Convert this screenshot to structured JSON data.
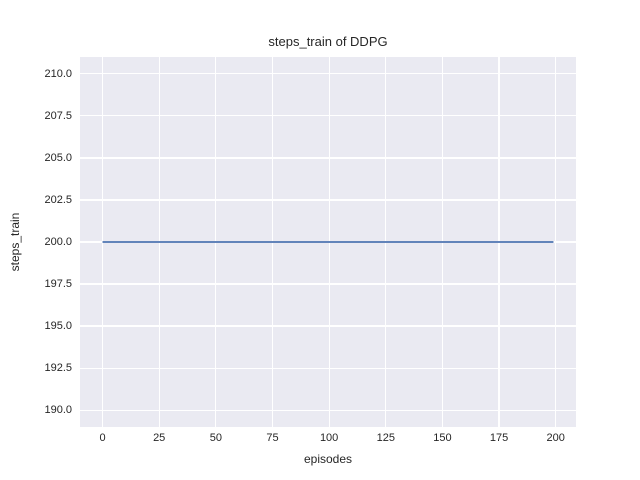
{
  "chart_data": {
    "type": "line",
    "title": "steps_train of DDPG",
    "xlabel": "episodes",
    "ylabel": "steps_train",
    "x_ticks": [
      0,
      25,
      50,
      75,
      100,
      125,
      150,
      175,
      200
    ],
    "x_tick_labels": [
      "0",
      "25",
      "50",
      "75",
      "100",
      "125",
      "150",
      "175",
      "200"
    ],
    "y_ticks": [
      190.0,
      192.5,
      195.0,
      197.5,
      200.0,
      202.5,
      205.0,
      207.5,
      210.0
    ],
    "y_tick_labels": [
      "190.0",
      "192.5",
      "195.0",
      "197.5",
      "200.0",
      "202.5",
      "205.0",
      "207.5",
      "210.0"
    ],
    "xlim": [
      -9.95,
      208.95
    ],
    "ylim": [
      189.0,
      211.0
    ],
    "grid": true,
    "legend": "none",
    "series": [
      {
        "name": "steps_train",
        "x": [
          0,
          199
        ],
        "y": [
          200,
          200
        ],
        "constant_value": 200,
        "color": "#4C72B0"
      }
    ],
    "colors": {
      "figure_bg": "#FFFFFF",
      "plot_bg": "#EAEAF2",
      "grid": "#FFFFFF",
      "text": "#262626",
      "line": "#4C72B0"
    }
  }
}
